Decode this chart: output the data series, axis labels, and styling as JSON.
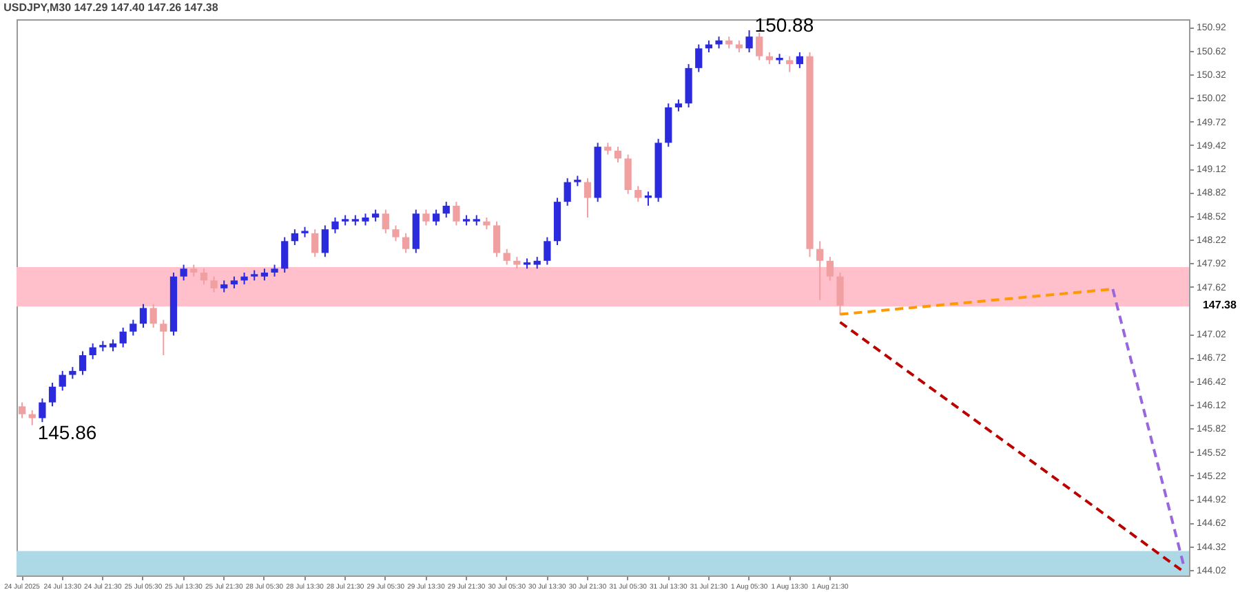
{
  "chart_data": {
    "type": "candlestick",
    "title": "USDJPY,M30  147.29 147.40 147.26 147.38",
    "categories": [
      "24 Jul 2025",
      null,
      null,
      null,
      "24 Jul 13:30",
      null,
      null,
      null,
      "24 Jul 21:30",
      null,
      null,
      null,
      "25 Jul 05:30",
      null,
      null,
      null,
      "25 Jul 13:30",
      null,
      null,
      null,
      "25 Jul 21:30",
      null,
      null,
      null,
      "28 Jul 05:30",
      null,
      null,
      null,
      "28 Jul 13:30",
      null,
      null,
      null,
      "28 Jul 21:30",
      null,
      null,
      null,
      "29 Jul 05:30",
      null,
      null,
      null,
      "29 Jul 13:30",
      null,
      null,
      null,
      "29 Jul 21:30",
      null,
      null,
      null,
      "30 Jul 05:30",
      null,
      null,
      null,
      "30 Jul 13:30",
      null,
      null,
      null,
      "30 Jul 21:30",
      null,
      null,
      null,
      "31 Jul 05:30",
      null,
      null,
      null,
      "31 Jul 13:30",
      null,
      null,
      null,
      "31 Jul 21:30",
      null,
      null,
      null,
      "1 Aug 05:30",
      null,
      null,
      null,
      "1 Aug 13:30",
      null,
      null,
      null,
      "1 Aug 21:30",
      null,
      null,
      null,
      null,
      null,
      null,
      null,
      null,
      null,
      null,
      null,
      null,
      null,
      null,
      null,
      null,
      null,
      null,
      null,
      null,
      null,
      null,
      null,
      null,
      null,
      null,
      null,
      null,
      null,
      null,
      null,
      null,
      null,
      null,
      null
    ],
    "ohlc": [
      [
        146.1,
        146.15,
        145.95,
        146.0
      ],
      [
        146.0,
        146.05,
        145.86,
        145.95
      ],
      [
        145.95,
        146.2,
        145.9,
        146.15
      ],
      [
        146.15,
        146.4,
        146.1,
        146.35
      ],
      [
        146.35,
        146.55,
        146.3,
        146.5
      ],
      [
        146.5,
        146.6,
        146.45,
        146.55
      ],
      [
        146.55,
        146.8,
        146.5,
        146.75
      ],
      [
        146.75,
        146.9,
        146.7,
        146.85
      ],
      [
        146.85,
        146.93,
        146.8,
        146.88
      ],
      [
        146.85,
        146.95,
        146.8,
        146.9
      ],
      [
        146.9,
        147.1,
        146.85,
        147.05
      ],
      [
        147.05,
        147.2,
        147.0,
        147.15
      ],
      [
        147.15,
        147.4,
        147.1,
        147.35
      ],
      [
        147.35,
        147.4,
        147.1,
        147.15
      ],
      [
        147.15,
        147.2,
        146.75,
        147.05
      ],
      [
        147.05,
        147.8,
        147.0,
        147.75
      ],
      [
        147.75,
        147.9,
        147.7,
        147.85
      ],
      [
        147.85,
        147.9,
        147.75,
        147.8
      ],
      [
        147.8,
        147.85,
        147.65,
        147.7
      ],
      [
        147.7,
        147.75,
        147.55,
        147.6
      ],
      [
        147.6,
        147.7,
        147.55,
        147.65
      ],
      [
        147.65,
        147.75,
        147.6,
        147.7
      ],
      [
        147.7,
        147.8,
        147.65,
        147.75
      ],
      [
        147.75,
        147.83,
        147.7,
        147.78
      ],
      [
        147.75,
        147.85,
        147.7,
        147.8
      ],
      [
        147.8,
        147.9,
        147.75,
        147.85
      ],
      [
        147.85,
        148.25,
        147.8,
        148.2
      ],
      [
        148.2,
        148.35,
        148.15,
        148.3
      ],
      [
        148.3,
        148.38,
        148.25,
        148.33
      ],
      [
        148.3,
        148.35,
        148.0,
        148.05
      ],
      [
        148.05,
        148.4,
        148.0,
        148.35
      ],
      [
        148.35,
        148.5,
        148.3,
        148.45
      ],
      [
        148.45,
        148.53,
        148.4,
        148.48
      ],
      [
        148.45,
        148.53,
        148.4,
        148.48
      ],
      [
        148.45,
        148.55,
        148.4,
        148.5
      ],
      [
        148.5,
        148.6,
        148.45,
        148.55
      ],
      [
        148.55,
        148.6,
        148.3,
        148.35
      ],
      [
        148.35,
        148.4,
        148.2,
        148.25
      ],
      [
        148.25,
        148.3,
        148.05,
        148.1
      ],
      [
        148.1,
        148.6,
        148.05,
        148.55
      ],
      [
        148.55,
        148.6,
        148.4,
        148.45
      ],
      [
        148.45,
        148.6,
        148.4,
        148.55
      ],
      [
        148.55,
        148.7,
        148.5,
        148.65
      ],
      [
        148.65,
        148.7,
        148.4,
        148.45
      ],
      [
        148.45,
        148.53,
        148.4,
        148.48
      ],
      [
        148.45,
        148.53,
        148.4,
        148.48
      ],
      [
        148.45,
        148.5,
        148.35,
        148.4
      ],
      [
        148.4,
        148.45,
        148.0,
        148.05
      ],
      [
        148.05,
        148.1,
        147.9,
        147.95
      ],
      [
        147.95,
        148.0,
        147.85,
        147.9
      ],
      [
        147.9,
        147.98,
        147.85,
        147.93
      ],
      [
        147.9,
        148.0,
        147.85,
        147.95
      ],
      [
        147.95,
        148.25,
        147.9,
        148.2
      ],
      [
        148.2,
        148.75,
        148.15,
        148.7
      ],
      [
        148.7,
        149.0,
        148.65,
        148.95
      ],
      [
        148.95,
        149.03,
        148.9,
        148.98
      ],
      [
        148.95,
        149.0,
        148.5,
        148.75
      ],
      [
        148.75,
        149.45,
        148.7,
        149.4
      ],
      [
        149.4,
        149.45,
        149.3,
        149.35
      ],
      [
        149.35,
        149.4,
        149.2,
        149.25
      ],
      [
        149.25,
        149.3,
        148.8,
        148.85
      ],
      [
        148.85,
        148.9,
        148.7,
        148.75
      ],
      [
        148.75,
        148.83,
        148.65,
        148.78
      ],
      [
        148.75,
        149.5,
        148.7,
        149.45
      ],
      [
        149.45,
        149.95,
        149.4,
        149.9
      ],
      [
        149.9,
        150.0,
        149.85,
        149.95
      ],
      [
        149.95,
        150.45,
        149.9,
        150.4
      ],
      [
        150.4,
        150.7,
        150.35,
        150.65
      ],
      [
        150.65,
        150.75,
        150.6,
        150.7
      ],
      [
        150.7,
        150.8,
        150.65,
        150.75
      ],
      [
        150.75,
        150.8,
        150.65,
        150.7
      ],
      [
        150.7,
        150.75,
        150.6,
        150.65
      ],
      [
        150.65,
        150.88,
        150.6,
        150.8
      ],
      [
        150.8,
        150.85,
        150.5,
        150.55
      ],
      [
        150.55,
        150.6,
        150.45,
        150.5
      ],
      [
        150.5,
        150.58,
        150.45,
        150.53
      ],
      [
        150.5,
        150.55,
        150.35,
        150.45
      ],
      [
        150.45,
        150.6,
        150.4,
        150.55
      ],
      [
        150.55,
        150.6,
        148.0,
        148.1
      ],
      [
        148.1,
        148.2,
        147.45,
        147.95
      ],
      [
        147.95,
        148.0,
        147.7,
        147.75
      ],
      [
        147.75,
        147.8,
        147.26,
        147.38
      ],
      null,
      null,
      null,
      null,
      null,
      null,
      null,
      null,
      null,
      null,
      null,
      null,
      null,
      null,
      null,
      null,
      null,
      null,
      null,
      null,
      null,
      null,
      null,
      null,
      null,
      null,
      null,
      null,
      null,
      null,
      null,
      null,
      null,
      null
    ],
    "colors": [
      "#f0a0a0",
      "#f0a0a0",
      "#2b2bdd",
      "#2b2bdd",
      "#2b2bdd",
      "#2b2bdd",
      "#2b2bdd",
      "#2b2bdd",
      "#2b2bdd",
      "#2b2bdd",
      "#2b2bdd",
      "#2b2bdd",
      "#2b2bdd",
      "#f0a0a0",
      "#f0a0a0",
      "#2b2bdd",
      "#2b2bdd",
      "#f0a0a0",
      "#f0a0a0",
      "#f0a0a0",
      "#2b2bdd",
      "#2b2bdd",
      "#2b2bdd",
      "#2b2bdd",
      "#2b2bdd",
      "#2b2bdd",
      "#2b2bdd",
      "#2b2bdd",
      "#2b2bdd",
      "#f0a0a0",
      "#2b2bdd",
      "#2b2bdd",
      "#2b2bdd",
      "#2b2bdd",
      "#2b2bdd",
      "#2b2bdd",
      "#f0a0a0",
      "#f0a0a0",
      "#f0a0a0",
      "#2b2bdd",
      "#f0a0a0",
      "#2b2bdd",
      "#2b2bdd",
      "#f0a0a0",
      "#2b2bdd",
      "#2b2bdd",
      "#f0a0a0",
      "#f0a0a0",
      "#f0a0a0",
      "#f0a0a0",
      "#2b2bdd",
      "#2b2bdd",
      "#2b2bdd",
      "#2b2bdd",
      "#2b2bdd",
      "#2b2bdd",
      "#f0a0a0",
      "#2b2bdd",
      "#f0a0a0",
      "#f0a0a0",
      "#f0a0a0",
      "#f0a0a0",
      "#2b2bdd",
      "#2b2bdd",
      "#2b2bdd",
      "#2b2bdd",
      "#2b2bdd",
      "#2b2bdd",
      "#2b2bdd",
      "#2b2bdd",
      "#f0a0a0",
      "#f0a0a0",
      "#2b2bdd",
      "#f0a0a0",
      "#f0a0a0",
      "#2b2bdd",
      "#f0a0a0",
      "#2b2bdd",
      "#f0a0a0",
      "#f0a0a0",
      "#f0a0a0",
      "#f0a0a0",
      null,
      null,
      null,
      null,
      null,
      null,
      null,
      null,
      null,
      null,
      null,
      null,
      null,
      null,
      null,
      null,
      null,
      null,
      null,
      null,
      null,
      null,
      null,
      null,
      null,
      null,
      null,
      null,
      null,
      null,
      null,
      null,
      null,
      null
    ],
    "series": [
      {
        "type": "line",
        "color": "#ff9900",
        "line_style": "dashed",
        "values": [
          null,
          null,
          null,
          null,
          null,
          null,
          null,
          null,
          null,
          null,
          null,
          null,
          null,
          null,
          null,
          null,
          null,
          null,
          null,
          null,
          null,
          null,
          null,
          null,
          null,
          null,
          null,
          null,
          null,
          null,
          null,
          null,
          null,
          null,
          null,
          null,
          null,
          null,
          null,
          null,
          null,
          null,
          null,
          null,
          null,
          null,
          null,
          null,
          null,
          null,
          null,
          null,
          null,
          null,
          null,
          null,
          null,
          null,
          null,
          null,
          null,
          null,
          null,
          null,
          null,
          null,
          null,
          null,
          null,
          null,
          null,
          null,
          null,
          null,
          null,
          null,
          null,
          null,
          null,
          null,
          null,
          147.27,
          null,
          null,
          null,
          null,
          null,
          null,
          null,
          null,
          null,
          null,
          null,
          null,
          null,
          null,
          null,
          null,
          null,
          null,
          null,
          null,
          null,
          null,
          null,
          null,
          null,
          null,
          147.59,
          null,
          null,
          null,
          null,
          null,
          null,
          null
        ]
      },
      {
        "type": "line",
        "color": "#9966dd",
        "line_style": "dashed",
        "values": [
          null,
          null,
          null,
          null,
          null,
          null,
          null,
          null,
          null,
          null,
          null,
          null,
          null,
          null,
          null,
          null,
          null,
          null,
          null,
          null,
          null,
          null,
          null,
          null,
          null,
          null,
          null,
          null,
          null,
          null,
          null,
          null,
          null,
          null,
          null,
          null,
          null,
          null,
          null,
          null,
          null,
          null,
          null,
          null,
          null,
          null,
          null,
          null,
          null,
          null,
          null,
          null,
          null,
          null,
          null,
          null,
          null,
          null,
          null,
          null,
          null,
          null,
          null,
          null,
          null,
          null,
          null,
          null,
          null,
          null,
          null,
          null,
          null,
          null,
          null,
          null,
          null,
          null,
          null,
          null,
          null,
          null,
          null,
          null,
          null,
          null,
          null,
          null,
          null,
          null,
          null,
          null,
          null,
          null,
          null,
          null,
          null,
          null,
          null,
          null,
          null,
          null,
          null,
          null,
          null,
          null,
          null,
          null,
          147.59,
          null,
          null,
          null,
          null,
          null,
          null,
          144.09
        ]
      },
      {
        "type": "line",
        "color": "#bb0000",
        "line_style": "dashed",
        "values": [
          null,
          null,
          null,
          null,
          null,
          null,
          null,
          null,
          null,
          null,
          null,
          null,
          null,
          null,
          null,
          null,
          null,
          null,
          null,
          null,
          null,
          null,
          null,
          null,
          null,
          null,
          null,
          null,
          null,
          null,
          null,
          null,
          null,
          null,
          null,
          null,
          null,
          null,
          null,
          null,
          null,
          null,
          null,
          null,
          null,
          null,
          null,
          null,
          null,
          null,
          null,
          null,
          null,
          null,
          null,
          null,
          null,
          null,
          null,
          null,
          null,
          null,
          null,
          null,
          null,
          null,
          null,
          null,
          null,
          null,
          null,
          null,
          null,
          null,
          null,
          null,
          null,
          null,
          null,
          null,
          null,
          147.17,
          null,
          null,
          null,
          null,
          null,
          null,
          null,
          null,
          null,
          null,
          null,
          null,
          null,
          null,
          null,
          null,
          null,
          null,
          null,
          null,
          null,
          null,
          null,
          null,
          null,
          null,
          null,
          null,
          null,
          null,
          null,
          null,
          null,
          144.0
        ]
      }
    ],
    "ylim": [
      143.95,
      151.02
    ],
    "yticks": [
      144.02,
      144.32,
      144.62,
      144.92,
      145.22,
      145.52,
      145.82,
      146.12,
      146.42,
      146.72,
      147.02,
      147.62,
      147.92,
      148.22,
      148.52,
      148.82,
      149.12,
      149.42,
      149.72,
      150.02,
      150.32,
      150.62,
      150.92
    ],
    "bands": [
      {
        "axis": "y",
        "from": 147.37,
        "to": 147.87,
        "color": "#ffc0cb"
      },
      {
        "axis": "y",
        "from": 143.95,
        "to": 144.26,
        "color": "#add8e6"
      }
    ],
    "annotations": [
      "150.88",
      "145.86",
      "147.38"
    ],
    "grid": false
  }
}
